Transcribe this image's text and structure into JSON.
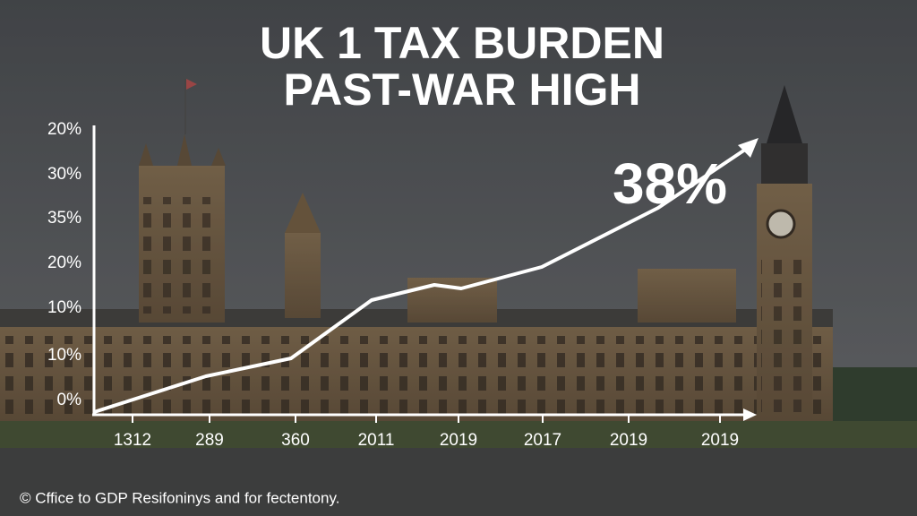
{
  "header": {
    "title_lines": [
      "UK 1 TAX BURDEN",
      "PAST-WAR HIGH"
    ]
  },
  "y_axis_labels": [
    "20%",
    "30%",
    "35%",
    "20%",
    "10%",
    "10%",
    "0%"
  ],
  "x_axis_labels": [
    "1312",
    "289",
    "360",
    "2011",
    "2019",
    "2017",
    "2019",
    "2019"
  ],
  "callout": "38%",
  "source": "© Cffice to GDP Resifoninys and for fectentony."
}
